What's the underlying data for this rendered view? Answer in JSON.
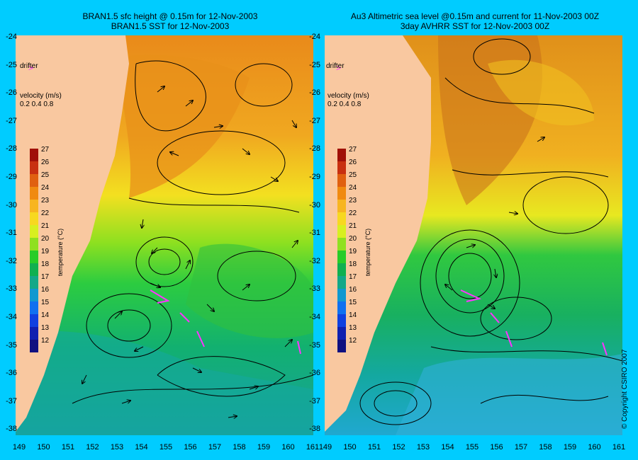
{
  "left_panel": {
    "title_line1": "BRAN1.5 sfc height @ 0.15m for 12-Nov-2003",
    "title_line2": "BRAN1.5 SST for 12-Nov-2003",
    "drifter_label": "drifter",
    "velocity_label": "velocity (m/s)",
    "velocity_values": "0.2 0.4 0.8",
    "colorbar_title": "temperature (°C)"
  },
  "right_panel": {
    "title_line1": "Au3 Altimetric sea level  @0.15m and current for 11-Nov-2003 00Z",
    "title_line2": "3day AVHRR SST for 12-Nov-2003 00Z",
    "drifter_label": "drifter",
    "velocity_label": "velocity (m/s)",
    "velocity_values": "0.2 0.4 0.8",
    "colorbar_title": "temperature (°C)"
  },
  "colorbar_ticks": [
    "27",
    "26",
    "25",
    "24",
    "23",
    "22",
    "21",
    "20",
    "19",
    "18",
    "17",
    "16",
    "15",
    "14",
    "13",
    "12"
  ],
  "colorbar_colors": [
    "#a01008",
    "#c83010",
    "#e06010",
    "#f08a10",
    "#f7b520",
    "#f7d820",
    "#d8ef20",
    "#8fe020",
    "#28cc28",
    "#10b050",
    "#14a888",
    "#1098d0",
    "#1070f0",
    "#1040e0",
    "#1020b0",
    "#101080"
  ],
  "y_axis_labels": [
    "-24",
    "-25",
    "-26",
    "-27",
    "-28",
    "-29",
    "-30",
    "-31",
    "-32",
    "-33",
    "-34",
    "-35",
    "-36",
    "-37",
    "-38"
  ],
  "x_axis_labels_left": [
    "149",
    "150",
    "151",
    "152",
    "153",
    "154",
    "155",
    "156",
    "157",
    "158",
    "159",
    "160",
    "161"
  ],
  "x_axis_labels_right": [
    "149",
    "150",
    "151",
    "152",
    "153",
    "154",
    "155",
    "156",
    "157",
    "158",
    "159",
    "160",
    "161"
  ],
  "copyright": "© Copyright CSIRO 2007",
  "colors": {
    "background": "#00ccff",
    "land": "#f9c8a0",
    "drifter": "#ff33ff"
  }
}
